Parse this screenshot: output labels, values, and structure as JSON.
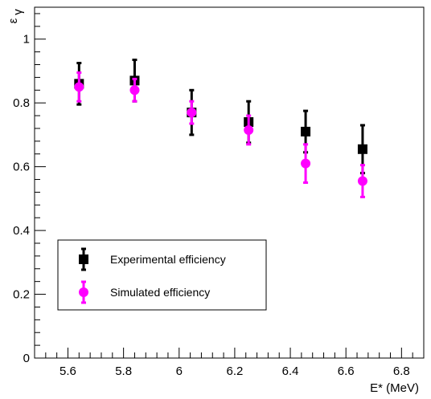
{
  "chart_data": {
    "type": "scatter",
    "xlabel": "E* (MeV)",
    "ylabel_main": "ε",
    "ylabel_sub": "γ",
    "xlim": [
      5.48,
      6.88
    ],
    "ylim": [
      0,
      1.1
    ],
    "x_ticks": [
      5.6,
      5.8,
      6.0,
      6.2,
      6.4,
      6.6,
      6.8
    ],
    "x_tick_labels": [
      "5.6",
      "5.8",
      "6",
      "6.2",
      "6.4",
      "6.6",
      "6.8"
    ],
    "y_ticks": [
      0,
      0.2,
      0.4,
      0.6,
      0.8,
      1.0
    ],
    "y_tick_labels": [
      "0",
      "0.2",
      "0.4",
      "0.6",
      "0.8",
      "1"
    ],
    "grid": false,
    "legend_position": "bottom-left",
    "series": [
      {
        "name": "Experimental efficiency",
        "color": "#000000",
        "marker": "square",
        "x": [
          5.64,
          5.84,
          6.045,
          6.25,
          6.455,
          6.66
        ],
        "y": [
          0.86,
          0.87,
          0.77,
          0.74,
          0.71,
          0.655
        ],
        "yerr": [
          0.065,
          0.065,
          0.07,
          0.065,
          0.065,
          0.075
        ]
      },
      {
        "name": "Simulated efficiency",
        "color": "#ff00ff",
        "marker": "circle",
        "x": [
          5.64,
          5.84,
          6.045,
          6.25,
          6.455,
          6.66
        ],
        "y": [
          0.85,
          0.84,
          0.77,
          0.715,
          0.61,
          0.555
        ],
        "yerr": [
          0.045,
          0.035,
          0.035,
          0.045,
          0.06,
          0.05
        ]
      }
    ]
  }
}
